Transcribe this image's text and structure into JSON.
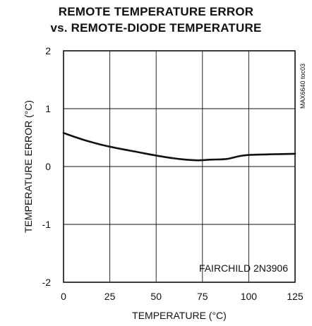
{
  "chart_data": {
    "type": "line",
    "title": "REMOTE TEMPERATURE ERROR",
    "subtitle": "vs. REMOTE-DIODE TEMPERATURE",
    "xlabel": "TEMPERATURE (°C)",
    "ylabel": "TEMPERATURE ERROR (°C)",
    "xlim": [
      0,
      125
    ],
    "ylim": [
      -2,
      2
    ],
    "xticks": [
      0,
      25,
      50,
      75,
      100,
      125
    ],
    "yticks": [
      2,
      1,
      0,
      -1,
      -2
    ],
    "grid": true,
    "annotation": "FAIRCHILD 2N3906",
    "side_label": "MAX6640 toc03",
    "series": [
      {
        "x": [
          0,
          10,
          20,
          30,
          40,
          50,
          60,
          70,
          75,
          80,
          88,
          95,
          100,
          110,
          125
        ],
        "y": [
          0.58,
          0.47,
          0.38,
          0.31,
          0.25,
          0.19,
          0.14,
          0.11,
          0.11,
          0.12,
          0.13,
          0.18,
          0.2,
          0.21,
          0.22
        ]
      }
    ]
  }
}
